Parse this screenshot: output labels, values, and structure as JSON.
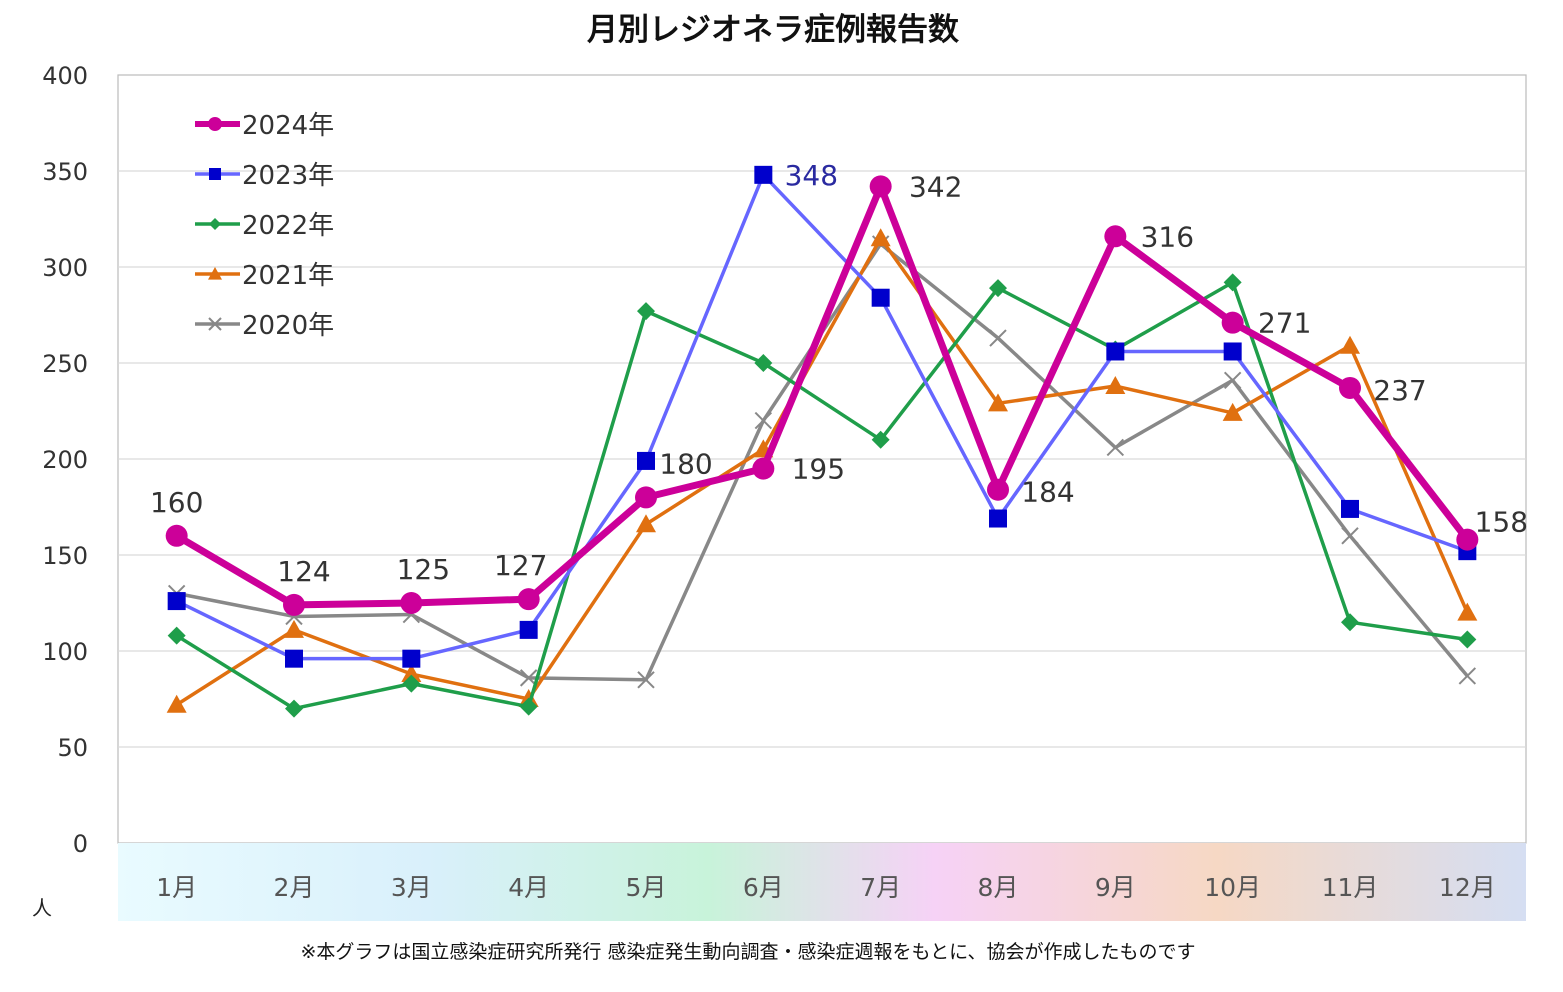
{
  "chart_data": {
    "type": "line",
    "title": "月別レジオネラ症例報告数",
    "ylabel": "",
    "xlabel": "",
    "unit_label": "人",
    "ylim": [
      0,
      400
    ],
    "yticks": [
      0,
      50,
      100,
      150,
      200,
      250,
      300,
      350,
      400
    ],
    "grid": true,
    "legend_position": "top-left",
    "categories": [
      "1月",
      "2月",
      "3月",
      "4月",
      "5月",
      "6月",
      "7月",
      "8月",
      "9月",
      "10月",
      "11月",
      "12月"
    ],
    "series": [
      {
        "name": "2024年",
        "color": "#cc0099",
        "marker": "circle",
        "values": [
          160,
          124,
          125,
          127,
          180,
          195,
          342,
          184,
          316,
          271,
          237,
          158
        ],
        "labeled": true
      },
      {
        "name": "2023年",
        "color": "#6666ff",
        "marker_color": "#0000cc",
        "marker": "square",
        "values": [
          126,
          96,
          96,
          111,
          199,
          348,
          284,
          169,
          256,
          256,
          174,
          152
        ],
        "labeled_points": [
          {
            "index": 5,
            "label": "348"
          }
        ]
      },
      {
        "name": "2022年",
        "color": "#1f9e4a",
        "marker": "diamond",
        "values": [
          108,
          70,
          83,
          71,
          277,
          250,
          210,
          289,
          257,
          292,
          115,
          106
        ]
      },
      {
        "name": "2021年",
        "color": "#e07010",
        "marker": "triangle",
        "values": [
          72,
          111,
          88,
          75,
          166,
          205,
          315,
          229,
          238,
          224,
          259,
          120
        ]
      },
      {
        "name": "2020年",
        "color": "#888888",
        "marker": "x",
        "values": [
          130,
          118,
          119,
          86,
          85,
          220,
          312,
          263,
          206,
          241,
          160,
          87
        ]
      }
    ]
  },
  "footnote": "※本グラフは国立感染症研究所発行 感染症発生動向調査・感染症週報をもとに、協会が作成したものです"
}
